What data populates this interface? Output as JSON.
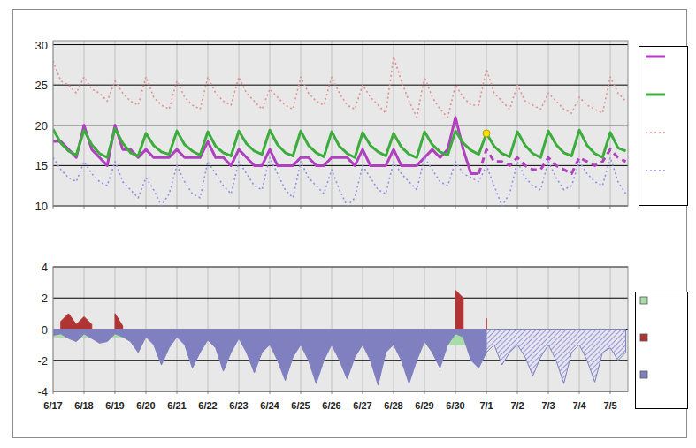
{
  "chart_data": [
    {
      "type": "line",
      "x": [
        0,
        0.25,
        0.5,
        0.75,
        1,
        1.25,
        1.5,
        1.75,
        2,
        2.25,
        2.5,
        2.75,
        3,
        3.25,
        3.5,
        3.75,
        4,
        4.25,
        4.5,
        4.75,
        5,
        5.25,
        5.5,
        5.75,
        6,
        6.25,
        6.5,
        6.75,
        7,
        7.25,
        7.5,
        7.75,
        8,
        8.25,
        8.5,
        8.75,
        9,
        9.25,
        9.5,
        9.75,
        10,
        10.25,
        10.5,
        10.75,
        11,
        11.25,
        11.5,
        11.75,
        12,
        12.25,
        12.5,
        12.75,
        13,
        13.25,
        13.5,
        13.75,
        14,
        14.25,
        14.5,
        14.75,
        15,
        15.25,
        15.5,
        15.75,
        16,
        16.25,
        16.5,
        16.75,
        17,
        17.25,
        17.5,
        17.75,
        18,
        18.25,
        18.5
      ],
      "xlim": [
        0,
        18.57
      ],
      "xticks": [
        {
          "value": 0,
          "label": "6/17"
        },
        {
          "value": 1,
          "label": "6/18"
        },
        {
          "value": 2,
          "label": "6/19"
        },
        {
          "value": 3,
          "label": "6/20"
        },
        {
          "value": 4,
          "label": "6/21"
        },
        {
          "value": 5,
          "label": "6/22"
        },
        {
          "value": 6,
          "label": "6/23"
        },
        {
          "value": 7,
          "label": "6/24"
        },
        {
          "value": 8,
          "label": "6/25"
        },
        {
          "value": 9,
          "label": "6/26"
        },
        {
          "value": 10,
          "label": "6/27"
        },
        {
          "value": 11,
          "label": "6/28"
        },
        {
          "value": 12,
          "label": "6/29"
        },
        {
          "value": 13,
          "label": "6/30"
        },
        {
          "value": 14,
          "label": "7/1"
        },
        {
          "value": 15,
          "label": "7/2"
        },
        {
          "value": 16,
          "label": "7/3"
        },
        {
          "value": 17,
          "label": "7/4"
        },
        {
          "value": 18,
          "label": "7/5"
        }
      ],
      "ylim": [
        10,
        30.5
      ],
      "yticks": [
        10,
        15,
        20,
        25,
        30
      ],
      "grid": true,
      "tick_labels": "y",
      "legend": "right",
      "series": [
        {
          "color": "#b040c0",
          "line_style": "solid",
          "values": [
            18,
            18,
            17,
            16,
            20,
            17,
            16,
            15,
            20,
            17,
            17,
            16,
            17,
            16,
            16,
            16,
            17,
            16,
            16,
            16,
            18,
            16,
            16,
            15,
            17,
            16,
            15,
            15,
            17,
            15,
            15,
            15,
            16,
            16,
            15,
            15,
            16,
            16,
            16,
            15,
            17,
            15,
            15,
            15,
            17,
            15,
            15,
            15,
            16,
            17,
            16,
            17,
            21,
            17,
            14,
            14,
            null,
            null,
            null,
            null,
            null,
            null,
            null,
            null,
            null,
            null,
            null,
            null,
            null,
            null,
            null,
            null,
            null,
            null,
            null
          ]
        },
        {
          "color": "#b040c0",
          "line_style": "dashed",
          "values": [
            null,
            null,
            null,
            null,
            null,
            null,
            null,
            null,
            null,
            null,
            null,
            null,
            null,
            null,
            null,
            null,
            null,
            null,
            null,
            null,
            null,
            null,
            null,
            null,
            null,
            null,
            null,
            null,
            null,
            null,
            null,
            null,
            null,
            null,
            null,
            null,
            null,
            null,
            null,
            null,
            null,
            null,
            null,
            null,
            null,
            null,
            null,
            null,
            null,
            null,
            null,
            null,
            null,
            null,
            null,
            14,
            17,
            15.5,
            15.5,
            15,
            16,
            15,
            14.5,
            14.5,
            16,
            15,
            14.5,
            14,
            16,
            15.5,
            15,
            15.5,
            17,
            16,
            15.5
          ]
        },
        {
          "color": "#3cac3c",
          "line_style": "solid",
          "values": [
            19.5,
            17.8,
            16.8,
            16.3,
            19.4,
            17.6,
            16.5,
            16.0,
            19.6,
            17.8,
            16.6,
            16.2,
            19.0,
            17.5,
            16.7,
            16.4,
            19.3,
            17.6,
            16.8,
            16.3,
            19.2,
            17.4,
            16.6,
            16.2,
            19.3,
            17.7,
            16.8,
            16.4,
            19.4,
            17.6,
            16.6,
            16.2,
            19.3,
            17.5,
            16.6,
            16.1,
            19.2,
            17.4,
            16.5,
            16.0,
            19.1,
            17.5,
            16.7,
            16.2,
            19.0,
            17.3,
            16.4,
            16.0,
            19.2,
            17.6,
            16.7,
            16.3,
            19.3,
            17.8,
            16.9,
            16.4,
            19.0,
            17.4,
            16.5,
            16.1,
            19.2,
            17.5,
            16.5,
            16.0,
            19.3,
            17.6,
            16.6,
            16.2,
            19.4,
            17.5,
            16.5,
            16.0,
            19.1,
            17.2,
            16.8
          ]
        },
        {
          "color": "#e09090",
          "line_style": "dotted",
          "values": [
            28.0,
            25.5,
            25.0,
            24.0,
            26.0,
            24.5,
            24.0,
            23.0,
            25.5,
            24.0,
            23.0,
            22.5,
            26.0,
            23.5,
            22.5,
            22.0,
            25.5,
            23.5,
            22.5,
            22.0,
            26.0,
            24.0,
            23.0,
            22.5,
            26.0,
            24.0,
            23.0,
            22.0,
            24.5,
            23.5,
            22.5,
            22.0,
            26.0,
            24.0,
            23.0,
            22.5,
            26.0,
            24.0,
            22.5,
            22.0,
            25.0,
            23.5,
            22.5,
            21.5,
            28.5,
            25.5,
            23.0,
            21.0,
            26.0,
            23.5,
            22.0,
            21.0,
            25.0,
            23.5,
            22.5,
            22.5,
            27.0,
            24.0,
            23.0,
            22.0,
            25.0,
            23.0,
            22.5,
            22.0,
            24.0,
            23.0,
            22.0,
            21.5,
            23.5,
            22.5,
            22.0,
            21.5,
            26.0,
            24.0,
            23.0
          ]
        },
        {
          "color": "#9090e0",
          "line_style": "dotted",
          "values": [
            16.0,
            14.5,
            13.5,
            13.0,
            15.5,
            14.0,
            13.0,
            12.5,
            15.5,
            13.0,
            12.0,
            11.0,
            13.5,
            12.0,
            10.0,
            11.5,
            15.0,
            13.0,
            11.5,
            11.0,
            15.5,
            14.0,
            12.5,
            11.5,
            15.5,
            14.0,
            12.5,
            12.0,
            16.0,
            14.0,
            12.0,
            11.0,
            15.5,
            13.5,
            12.5,
            11.5,
            14.5,
            12.0,
            10.0,
            11.0,
            15.0,
            13.5,
            12.0,
            11.5,
            15.5,
            14.0,
            13.0,
            12.0,
            16.0,
            14.5,
            13.0,
            12.5,
            15.5,
            14.0,
            13.5,
            13.0,
            15.0,
            12.5,
            10.0,
            11.5,
            15.5,
            13.5,
            12.5,
            12.0,
            15.5,
            13.5,
            12.0,
            12.5,
            15.5,
            14.0,
            13.0,
            12.5,
            16.0,
            13.0,
            11.5
          ]
        },
        {
          "type": "scatter",
          "color": "#ffe000",
          "marker": "circle",
          "values": [
            null,
            null,
            null,
            null,
            null,
            null,
            null,
            null,
            null,
            null,
            null,
            null,
            null,
            null,
            null,
            null,
            null,
            null,
            null,
            null,
            null,
            null,
            null,
            null,
            null,
            null,
            null,
            null,
            null,
            null,
            null,
            null,
            null,
            null,
            null,
            null,
            null,
            null,
            null,
            null,
            null,
            null,
            null,
            null,
            null,
            null,
            null,
            null,
            null,
            null,
            null,
            null,
            null,
            null,
            null,
            null,
            19,
            null,
            null,
            null,
            null,
            null,
            null,
            null,
            null,
            null,
            null,
            null,
            null,
            null,
            null,
            null,
            null,
            null,
            null
          ]
        }
      ]
    },
    {
      "type": "area",
      "x": [
        0,
        0.25,
        0.5,
        0.75,
        1,
        1.25,
        1.5,
        1.75,
        2,
        2.25,
        2.5,
        2.75,
        3,
        3.25,
        3.5,
        3.75,
        4,
        4.25,
        4.5,
        4.75,
        5,
        5.25,
        5.5,
        5.75,
        6,
        6.25,
        6.5,
        6.75,
        7,
        7.25,
        7.5,
        7.75,
        8,
        8.25,
        8.5,
        8.75,
        9,
        9.25,
        9.5,
        9.75,
        10,
        10.25,
        10.5,
        10.75,
        11,
        11.25,
        11.5,
        11.75,
        12,
        12.25,
        12.5,
        12.75,
        13,
        13.25,
        13.5,
        13.75,
        14,
        14.25,
        14.5,
        14.75,
        15,
        15.25,
        15.5,
        15.75,
        16,
        16.25,
        16.5,
        16.75,
        17,
        17.25,
        17.5,
        17.75,
        18,
        18.25,
        18.5
      ],
      "xlim": [
        0,
        18.57
      ],
      "xticks": [
        {
          "value": 0,
          "label": "6/17"
        },
        {
          "value": 1,
          "label": "6/18"
        },
        {
          "value": 2,
          "label": "6/19"
        },
        {
          "value": 3,
          "label": "6/20"
        },
        {
          "value": 4,
          "label": "6/21"
        },
        {
          "value": 5,
          "label": "6/22"
        },
        {
          "value": 6,
          "label": "6/23"
        },
        {
          "value": 7,
          "label": "6/24"
        },
        {
          "value": 8,
          "label": "6/25"
        },
        {
          "value": 9,
          "label": "6/26"
        },
        {
          "value": 10,
          "label": "6/27"
        },
        {
          "value": 11,
          "label": "6/28"
        },
        {
          "value": 12,
          "label": "6/29"
        },
        {
          "value": 13,
          "label": "6/30"
        },
        {
          "value": 14,
          "label": "7/1"
        },
        {
          "value": 15,
          "label": "7/2"
        },
        {
          "value": 16,
          "label": "7/3"
        },
        {
          "value": 17,
          "label": "7/4"
        },
        {
          "value": 18,
          "label": "7/5"
        }
      ],
      "ylim": [
        -4,
        4
      ],
      "yticks": [
        -4,
        -2,
        0,
        2,
        4
      ],
      "grid": true,
      "legend": "right",
      "series": [
        {
          "color": "#a8dca8",
          "values": [
            -0.5,
            -0.5,
            -0.5,
            -0.5,
            -0.5,
            -0.5,
            -0.5,
            -0.5,
            -0.5,
            -0.5,
            -0.5,
            -0.5,
            null,
            null,
            null,
            null,
            null,
            null,
            null,
            null,
            null,
            null,
            null,
            null,
            null,
            null,
            null,
            null,
            null,
            null,
            null,
            null,
            null,
            null,
            null,
            null,
            null,
            null,
            null,
            null,
            null,
            null,
            null,
            null,
            null,
            null,
            null,
            null,
            null,
            null,
            -1.0,
            -1.0,
            -1.0,
            -1.0,
            -1.0,
            -1.0,
            null,
            null,
            null,
            null,
            null,
            null,
            null,
            null,
            null,
            null,
            null,
            null,
            null,
            null,
            null,
            null,
            null,
            null,
            null
          ]
        },
        {
          "color": "#b03434",
          "values": [
            null,
            0.5,
            1.0,
            0.3,
            0.8,
            0.3,
            null,
            null,
            1.0,
            0.2,
            null,
            null,
            null,
            null,
            null,
            null,
            null,
            null,
            null,
            null,
            null,
            null,
            null,
            null,
            null,
            null,
            null,
            null,
            null,
            null,
            null,
            null,
            null,
            null,
            null,
            null,
            null,
            null,
            null,
            null,
            null,
            null,
            null,
            null,
            null,
            null,
            null,
            null,
            null,
            null,
            null,
            null,
            2.5,
            2.0,
            null,
            null,
            0.7,
            null,
            null,
            null,
            null,
            null,
            null,
            null,
            null,
            null,
            null,
            null,
            null,
            null,
            null,
            null,
            null,
            null,
            null
          ]
        },
        {
          "color": "#8080c0",
          "values": [
            -0.4,
            -0.3,
            -0.6,
            -0.8,
            -0.3,
            -0.6,
            -0.9,
            -0.8,
            -0.3,
            -0.5,
            -0.8,
            -1.5,
            -0.5,
            -1.0,
            -2.3,
            -1.2,
            -0.5,
            -1.0,
            -2.5,
            -1.5,
            -0.7,
            -1.2,
            -2.7,
            -1.5,
            -0.6,
            -1.5,
            -2.8,
            -1.5,
            -1.0,
            -2.0,
            -3.3,
            -1.8,
            -1.0,
            -2.0,
            -3.5,
            -2.0,
            -1.0,
            -2.0,
            -3.2,
            -1.8,
            -1.0,
            -2.0,
            -3.6,
            -1.5,
            -1.0,
            -2.0,
            -3.5,
            -2.0,
            -0.8,
            -1.5,
            -2.5,
            -1.0,
            -0.3,
            -0.5,
            -2.0,
            -2.5,
            -1.5,
            null,
            null,
            null,
            null,
            null,
            null,
            null,
            null,
            null,
            null,
            null,
            null,
            null,
            null,
            null,
            null,
            null,
            null
          ]
        },
        {
          "color": "#8080c0",
          "line_style": "hatched",
          "values": [
            null,
            null,
            null,
            null,
            null,
            null,
            null,
            null,
            null,
            null,
            null,
            null,
            null,
            null,
            null,
            null,
            null,
            null,
            null,
            null,
            null,
            null,
            null,
            null,
            null,
            null,
            null,
            null,
            null,
            null,
            null,
            null,
            null,
            null,
            null,
            null,
            null,
            null,
            null,
            null,
            null,
            null,
            null,
            null,
            null,
            null,
            null,
            null,
            null,
            null,
            null,
            null,
            null,
            null,
            null,
            null,
            -1.5,
            -1.0,
            -2.3,
            -1.5,
            -1.0,
            -1.8,
            -3.0,
            -1.8,
            -1.0,
            -2.0,
            -3.5,
            -1.5,
            -1.0,
            -2.0,
            -3.4,
            -1.5,
            -1.2,
            -2.0,
            -1.5
          ]
        }
      ]
    }
  ]
}
